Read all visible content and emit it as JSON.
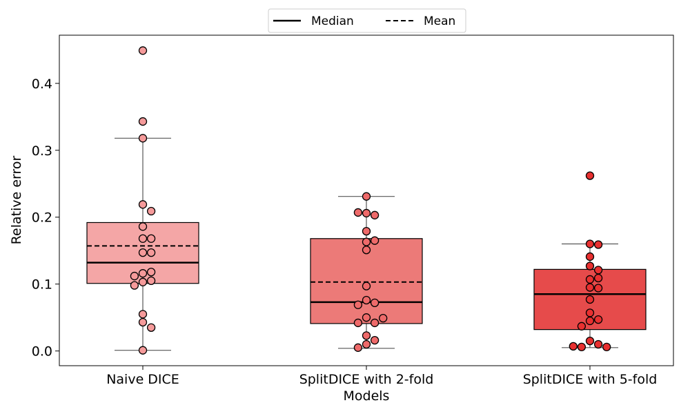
{
  "chart_data": {
    "type": "box",
    "xlabel": "Models",
    "ylabel": "Relative error",
    "ylim": [
      -0.022,
      0.472
    ],
    "yticks": [
      0.0,
      0.1,
      0.2,
      0.3,
      0.4
    ],
    "ytick_labels": [
      "0.0",
      "0.1",
      "0.2",
      "0.3",
      "0.4"
    ],
    "categories": [
      "Naive DICE",
      "SplitDICE with 2-fold",
      "SplitDICE with 5-fold"
    ],
    "legend": {
      "position": "top-center-outside",
      "entries": [
        {
          "label": "Median",
          "style": "solid"
        },
        {
          "label": "Mean",
          "style": "dashed"
        }
      ]
    },
    "box_colors": [
      "#f4a6a6",
      "#ec7a78",
      "#e64b4b"
    ],
    "point_colors": [
      "#f59a9a",
      "#ee6a6a",
      "#e83030"
    ],
    "boxes": [
      {
        "category": "Naive DICE",
        "q1": 0.101,
        "median": 0.132,
        "mean": 0.157,
        "q3": 0.192,
        "whisker_low": 0.001,
        "whisker_high": 0.318
      },
      {
        "category": "SplitDICE with 2-fold",
        "q1": 0.041,
        "median": 0.073,
        "mean": 0.103,
        "q3": 0.168,
        "whisker_low": 0.004,
        "whisker_high": 0.231
      },
      {
        "category": "SplitDICE with 5-fold",
        "q1": 0.032,
        "median": 0.085,
        "mean": 0.085,
        "q3": 0.122,
        "whisker_low": 0.005,
        "whisker_high": 0.16
      }
    ],
    "points": [
      [
        0.449,
        0.343,
        0.318,
        0.219,
        0.209,
        0.186,
        0.168,
        0.168,
        0.147,
        0.147,
        0.116,
        0.118,
        0.112,
        0.103,
        0.105,
        0.098,
        0.055,
        0.043,
        0.035,
        0.001
      ],
      [
        0.231,
        0.206,
        0.203,
        0.207,
        0.179,
        0.163,
        0.165,
        0.151,
        0.097,
        0.076,
        0.072,
        0.069,
        0.05,
        0.042,
        0.042,
        0.049,
        0.023,
        0.016,
        0.01,
        0.005
      ],
      [
        0.262,
        0.16,
        0.159,
        0.141,
        0.127,
        0.121,
        0.107,
        0.109,
        0.095,
        0.094,
        0.077,
        0.057,
        0.045,
        0.047,
        0.037,
        0.015,
        0.01,
        0.006,
        0.006,
        0.007
      ]
    ]
  }
}
